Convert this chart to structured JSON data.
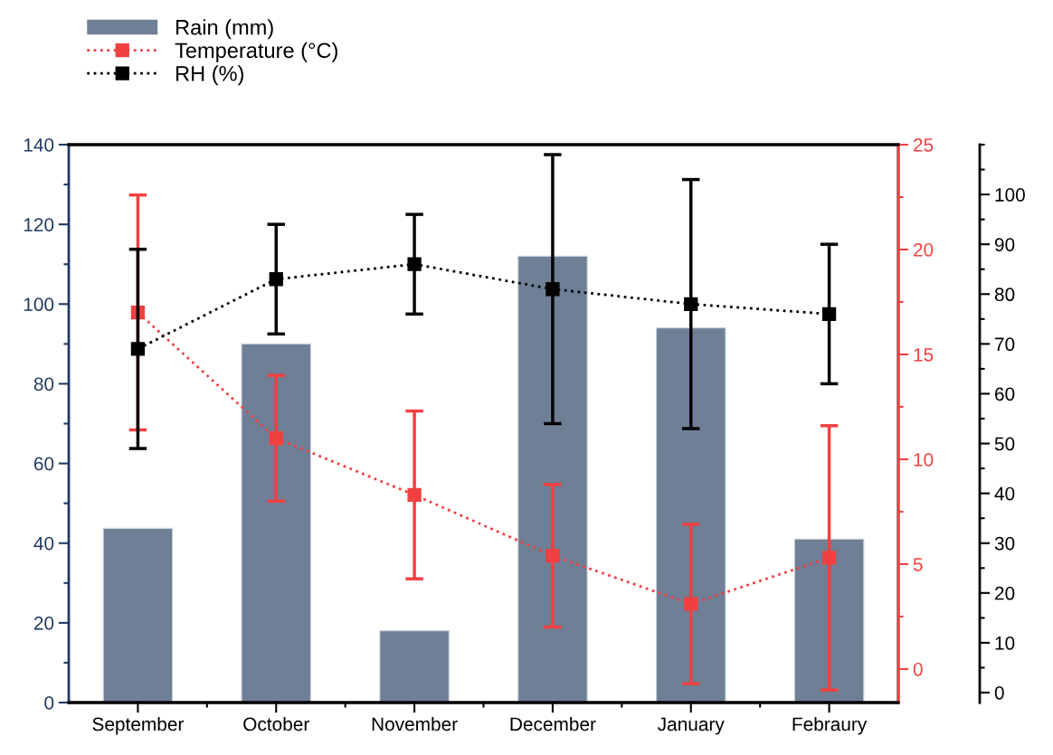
{
  "chart_data": {
    "type": "bar",
    "categories": [
      "September",
      "October",
      "November",
      "December",
      "January",
      "Febraury"
    ],
    "series": [
      {
        "name": "Rain (mm)",
        "color": "#6f7f96",
        "values": [
          43.7,
          90,
          18,
          112,
          94,
          41
        ]
      },
      {
        "name": "Temperature (°C)",
        "type": "line",
        "axis": "y2",
        "color": "#f04040",
        "values": [
          17,
          11,
          8.3,
          5.4,
          3.1,
          5.3
        ],
        "errors": [
          5.6,
          3,
          4,
          3.4,
          3.8,
          6.3
        ]
      },
      {
        "name": "RH (%)",
        "type": "line",
        "axis": "y3",
        "color": "#000000",
        "values": [
          69,
          83,
          86,
          81,
          78,
          76
        ],
        "errors": [
          20,
          11,
          10,
          27,
          25,
          14
        ]
      }
    ],
    "ylim": [
      0,
      140
    ],
    "yticks": [
      0,
      20,
      40,
      60,
      80,
      100,
      120,
      140
    ],
    "y2lim": [
      -1.6,
      25
    ],
    "y2ticks": [
      0,
      5,
      10,
      15,
      20,
      25
    ],
    "y3lim": [
      -2,
      110
    ],
    "y3ticks": [
      0,
      10,
      20,
      30,
      40,
      50,
      60,
      70,
      80,
      90,
      100
    ],
    "marker": "square",
    "line_style": "dotted",
    "legend": "top left",
    "grid": false
  }
}
